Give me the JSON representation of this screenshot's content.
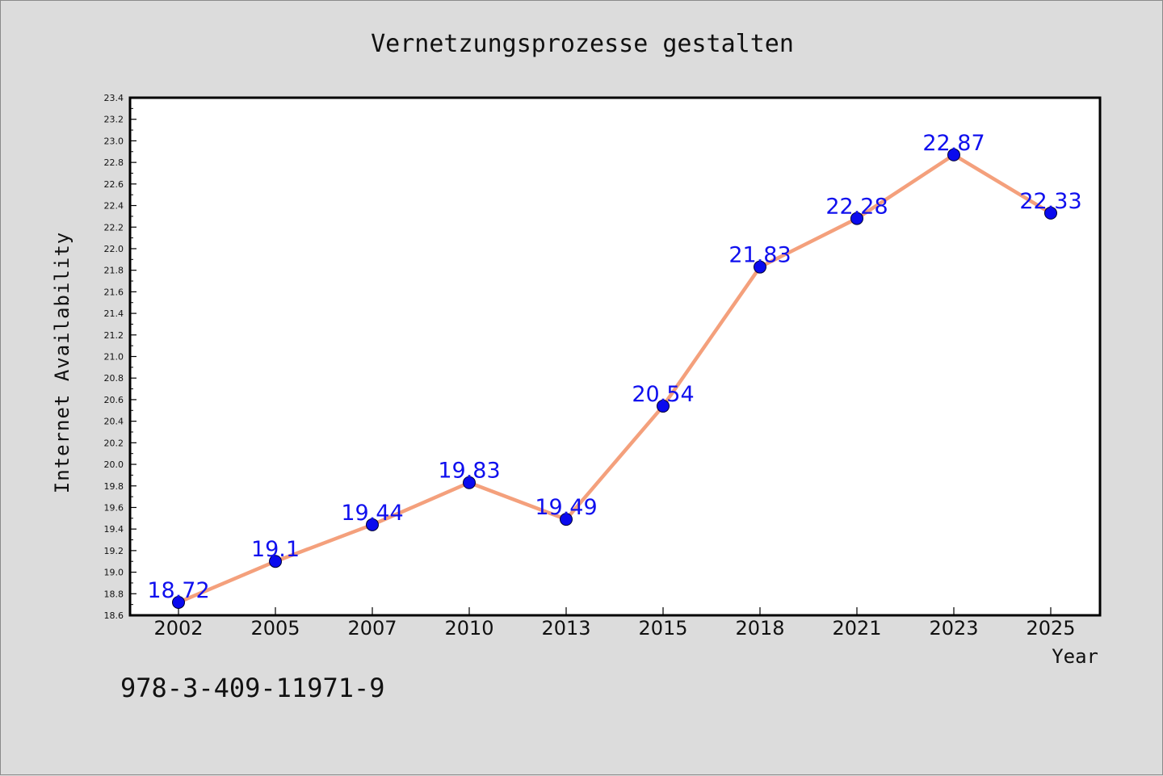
{
  "chart_data": {
    "type": "line",
    "title": "Vernetzungsprozesse gestalten",
    "xlabel": "Year",
    "ylabel": "Internet Availability",
    "categories": [
      "2002",
      "2005",
      "2007",
      "2010",
      "2013",
      "2015",
      "2018",
      "2021",
      "2023",
      "2025"
    ],
    "series": [
      {
        "values": [
          18.72,
          19.1,
          19.44,
          19.83,
          19.49,
          20.54,
          21.83,
          22.28,
          22.87,
          22.33
        ],
        "labels": [
          "18.72",
          "19.1",
          "19.44",
          "19.83",
          "19.49",
          "20.54",
          "21.83",
          "22.28",
          "22.87",
          "22.33"
        ]
      }
    ],
    "ylim": [
      18.6,
      23.4
    ],
    "yticks": [
      "18.6",
      "18.8",
      "19.0",
      "19.2",
      "19.4",
      "19.6",
      "19.8",
      "20.0",
      "20.2",
      "20.4",
      "20.6",
      "20.8",
      "21.0",
      "21.2",
      "21.4",
      "21.6",
      "21.8",
      "22.0",
      "22.2",
      "22.4",
      "22.6",
      "22.8",
      "23.0",
      "23.2",
      "23.4"
    ],
    "grid": false,
    "line_color": "#f4a07c",
    "marker_color": "#0a0aee",
    "label_color": "#1010ee",
    "background_color": "#dcdcdc",
    "plot_background_color": "#ffffff"
  },
  "footer": {
    "isbn": "978-3-409-11971-9"
  }
}
